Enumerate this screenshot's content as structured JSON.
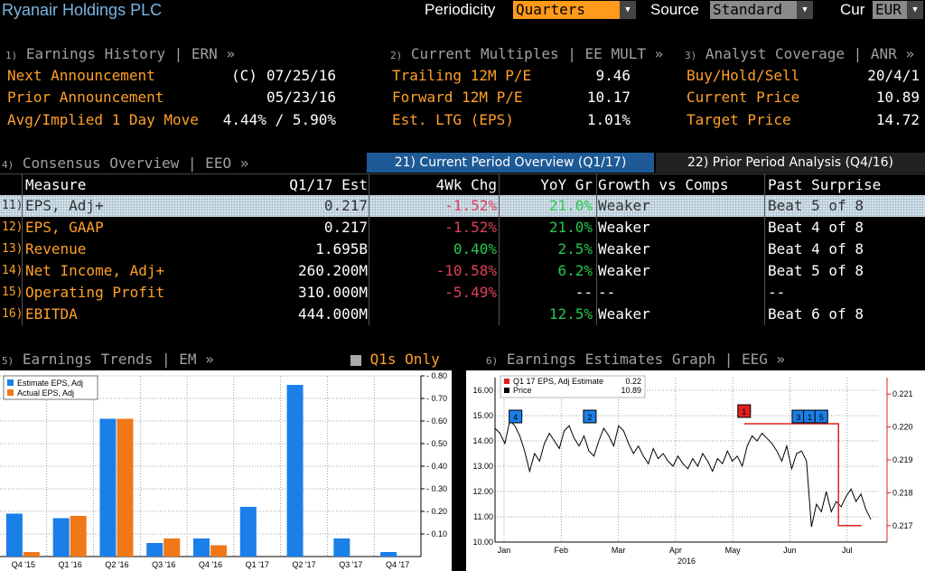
{
  "header": {
    "title": "Ryanair Holdings PLC",
    "periodicity_label": "Periodicity",
    "periodicity_value": "Quarters",
    "source_label": "Source",
    "source_value": "Standard",
    "cur_label": "Cur",
    "cur_value": "EUR"
  },
  "earnings_history": {
    "num": "1)",
    "title": "Earnings History | ERN »",
    "rows": [
      {
        "label": "Next Announcement",
        "prefix": "(C)",
        "value": "07/25/16"
      },
      {
        "label": "Prior Announcement",
        "prefix": "",
        "value": "05/23/16"
      },
      {
        "label": "Avg/Implied 1 Day Move",
        "prefix": "",
        "value": "4.44% / 5.90%"
      }
    ]
  },
  "current_multiples": {
    "num": "2)",
    "title": "Current Multiples | EE MULT »",
    "rows": [
      {
        "label": "Trailing 12M P/E",
        "value": "9.46"
      },
      {
        "label": "Forward 12M P/E",
        "value": "10.17"
      },
      {
        "label": "Est. LTG (EPS)",
        "value": "1.01%"
      }
    ]
  },
  "analyst_coverage": {
    "num": "3)",
    "title": "Analyst Coverage | ANR »",
    "rows": [
      {
        "label": "Buy/Hold/Sell",
        "value": "20/4/1"
      },
      {
        "label": "Current Price",
        "value": "10.89"
      },
      {
        "label": "Target Price",
        "value": "14.72"
      }
    ]
  },
  "consensus": {
    "num": "4)",
    "title": "Consensus Overview | EEO »",
    "tab_current": "21) Current Period Overview (Q1/17)",
    "tab_prior": "22) Prior Period Analysis (Q4/16)",
    "headers": [
      "Measure",
      "Q1/17 Est",
      "4Wk Chg",
      "YoY Gr",
      "Growth vs Comps",
      "Past Surprise"
    ],
    "rows": [
      {
        "num": "11)",
        "measure": "EPS, Adj+",
        "est": "0.217",
        "chg": "-1.52%",
        "chg_color": "red",
        "yoy": "21.0%",
        "growth": "Weaker",
        "surprise": "Beat 5 of 8"
      },
      {
        "num": "12)",
        "measure": "EPS, GAAP",
        "est": "0.217",
        "chg": "-1.52%",
        "chg_color": "red",
        "yoy": "21.0%",
        "growth": "Weaker",
        "surprise": "Beat 4 of 8"
      },
      {
        "num": "13)",
        "measure": "Revenue",
        "est": "1.695B",
        "chg": "0.40%",
        "chg_color": "green",
        "yoy": "2.5%",
        "growth": "Weaker",
        "surprise": "Beat 4 of 8"
      },
      {
        "num": "14)",
        "measure": "Net Income, Adj+",
        "est": "260.200M",
        "chg": "-10.58%",
        "chg_color": "red",
        "yoy": "6.2%",
        "growth": "Weaker",
        "surprise": "Beat 5 of 8"
      },
      {
        "num": "15)",
        "measure": "Operating Profit",
        "est": "310.000M",
        "chg": "-5.49%",
        "chg_color": "red",
        "yoy": "--",
        "growth": "--",
        "surprise": "--"
      },
      {
        "num": "16)",
        "measure": "EBITDA",
        "est": "444.000M",
        "chg": "",
        "chg_color": "red",
        "yoy": "12.5%",
        "growth": "Weaker",
        "surprise": "Beat 6 of 8"
      }
    ]
  },
  "earnings_trends": {
    "num": "5)",
    "title": "Earnings Trends | EM »",
    "q1s_label": "Q1s Only"
  },
  "earnings_graph": {
    "num": "6)",
    "title": "Earnings Estimates Graph | EEG »"
  },
  "chart_data": [
    {
      "type": "bar",
      "categories": [
        "Q4 '15",
        "Q1 '16",
        "Q2 '16",
        "Q3 '16",
        "Q4 '16",
        "Q1 '17",
        "Q2 '17",
        "Q3 '17",
        "Q4 '17"
      ],
      "series": [
        {
          "name": "Estimate EPS, Adj",
          "color": "#1a7fe8",
          "values": [
            0.19,
            0.17,
            0.61,
            0.06,
            0.08,
            0.22,
            0.76,
            0.08,
            0.02
          ]
        },
        {
          "name": "Actual EPS, Adj",
          "color": "#f07818",
          "values": [
            0.02,
            0.18,
            0.61,
            0.08,
            0.05,
            null,
            null,
            null,
            null
          ]
        }
      ],
      "ylim": [
        0,
        0.8
      ],
      "yticks": [
        "0.10",
        "0.20",
        "0.30",
        "0.40",
        "0.50",
        "0.60",
        "0.70",
        "0.80"
      ],
      "grid": true,
      "legend": "top-left"
    },
    {
      "type": "line",
      "xlabel": "2016",
      "months": [
        "Jan",
        "Feb",
        "Mar",
        "Apr",
        "May",
        "Jun",
        "Jul"
      ],
      "legend": "top-left",
      "legend_items": [
        {
          "name": "Q1 17 EPS, Adj Estimate",
          "value": "0.22",
          "color": "#e02020"
        },
        {
          "name": "Price",
          "value": "10.89",
          "color": "#000000"
        }
      ],
      "y_left_ticks": [
        "10.00",
        "11.00",
        "12.00",
        "13.00",
        "14.00",
        "15.00",
        "16.00"
      ],
      "y_left_lim": [
        10,
        16.5
      ],
      "y_right_ticks": [
        "0.217",
        "0.218",
        "0.219",
        "0.220",
        "0.221"
      ],
      "y_right_lim": [
        0.2165,
        0.2215
      ],
      "price_series": [
        14.5,
        14.3,
        13.9,
        14.8,
        14.6,
        14.2,
        13.6,
        12.8,
        13.5,
        13.2,
        13.9,
        14.3,
        14.0,
        13.7,
        14.4,
        14.6,
        14.1,
        13.8,
        14.2,
        13.6,
        13.4,
        14.0,
        14.5,
        14.2,
        13.8,
        14.6,
        14.4,
        13.9,
        13.5,
        13.8,
        13.4,
        13.1,
        13.7,
        13.3,
        13.5,
        13.2,
        13.0,
        13.4,
        13.1,
        12.9,
        13.3,
        13.0,
        13.5,
        13.2,
        12.8,
        13.3,
        13.1,
        13.6,
        13.2,
        13.4,
        13.0,
        13.8,
        14.2,
        14.0,
        14.3,
        14.1,
        13.9,
        13.6,
        13.2,
        13.8,
        12.9,
        13.5,
        13.6,
        13.2,
        10.6,
        11.5,
        11.2,
        12.0,
        11.2,
        11.6,
        11.4,
        11.8,
        12.1,
        11.6,
        11.9,
        11.3,
        10.9
      ],
      "estimate_series": [
        0.2201,
        0.2201,
        0.2201,
        0.2201,
        0.2201,
        0.2201,
        0.217,
        0.217
      ],
      "estimate_dates": [
        "May",
        "May",
        "Jun",
        "Jun",
        "Jul",
        "Jul",
        "Jul",
        "Jul"
      ],
      "event_markers": [
        {
          "label": "4",
          "color": "#1a7fe8",
          "month_pos": 0.2
        },
        {
          "label": "2",
          "color": "#1a7fe8",
          "month_pos": 1.5
        },
        {
          "label": "1",
          "color": "#e02020",
          "month_pos": 4.2
        },
        {
          "label": "3",
          "color": "#1a7fe8",
          "month_pos": 5.15
        },
        {
          "label": "1",
          "color": "#1a7fe8",
          "month_pos": 5.35
        },
        {
          "label": "5",
          "color": "#1a7fe8",
          "month_pos": 5.55
        }
      ]
    }
  ]
}
